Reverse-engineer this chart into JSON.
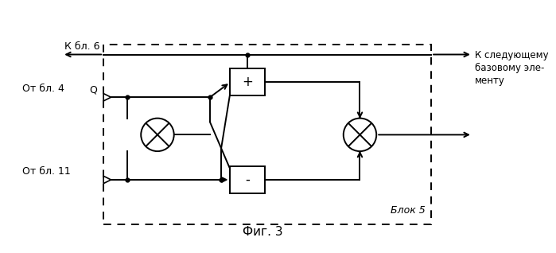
{
  "title": "Фиг. 3",
  "label_k_bl6": "К бл. 6",
  "label_ot_bl4": "От бл. 4",
  "label_q": "Q",
  "label_ot_bl11": "От бл. 11",
  "label_blok5": "Блок 5",
  "label_next": "К следующему\nбазовому эле-\nменту",
  "bg_color": "#ffffff",
  "line_color": "#000000"
}
